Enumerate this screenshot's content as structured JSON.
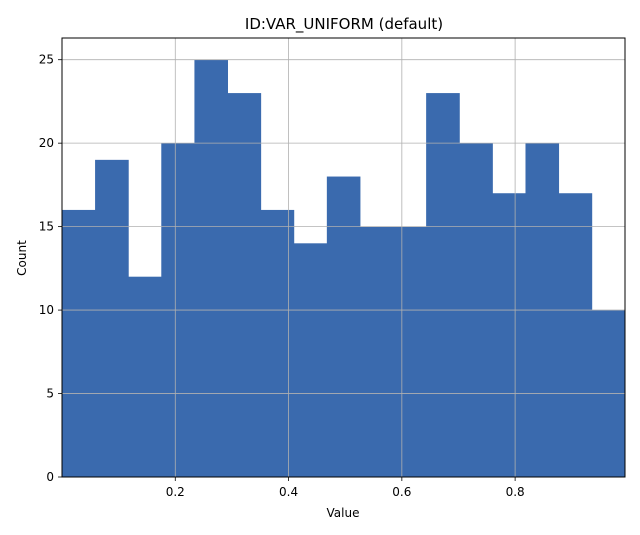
{
  "chart_data": {
    "type": "histogram",
    "title": "ID:VAR_UNIFORM (default)",
    "xlabel": "Value",
    "ylabel": "Count",
    "xlim": [
      0.0,
      0.994
    ],
    "ylim": [
      0,
      26.3
    ],
    "bin_edges": [
      0.0,
      0.0584,
      0.1169,
      0.1753,
      0.2338,
      0.2922,
      0.3507,
      0.4091,
      0.4676,
      0.526,
      0.5845,
      0.6429,
      0.7014,
      0.7598,
      0.8183,
      0.8767,
      0.9352,
      0.994
    ],
    "values": [
      16,
      19,
      12,
      20,
      25,
      23,
      16,
      14,
      18,
      15,
      15,
      23,
      20,
      17,
      20,
      17,
      10
    ],
    "x_ticks": [
      0.2,
      0.4,
      0.6,
      0.8
    ],
    "x_tick_labels": [
      "0.2",
      "0.4",
      "0.6",
      "0.8"
    ],
    "y_ticks": [
      0,
      5,
      10,
      15,
      20,
      25
    ],
    "y_tick_labels": [
      "0",
      "5",
      "10",
      "15",
      "20",
      "25"
    ],
    "grid": true,
    "bar_color": "#3a6aae",
    "grid_color": "#b0b0b0"
  }
}
